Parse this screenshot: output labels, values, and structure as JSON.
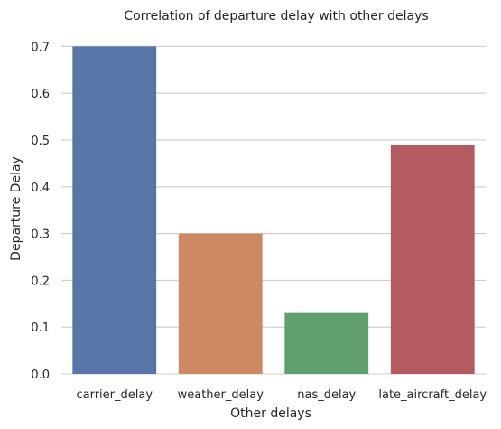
{
  "chart_data": {
    "type": "bar",
    "title": "Correlation of departure delay with other delays",
    "xlabel": "Other delays",
    "ylabel": "Departure Delay",
    "categories": [
      "carrier_delay",
      "weather_delay",
      "nas_delay",
      "late_aircraft_delay"
    ],
    "values": [
      0.7,
      0.3,
      0.13,
      0.49
    ],
    "colors": [
      "#5975a8",
      "#cf8962",
      "#5fa06d",
      "#b45b61"
    ],
    "ylim": [
      0,
      0.72
    ],
    "yticks": [
      0.0,
      0.1,
      0.2,
      0.3,
      0.4,
      0.5,
      0.6,
      0.7
    ],
    "ytick_labels": [
      "0.0",
      "0.1",
      "0.2",
      "0.3",
      "0.4",
      "0.5",
      "0.6",
      "0.7"
    ],
    "grid": true
  }
}
